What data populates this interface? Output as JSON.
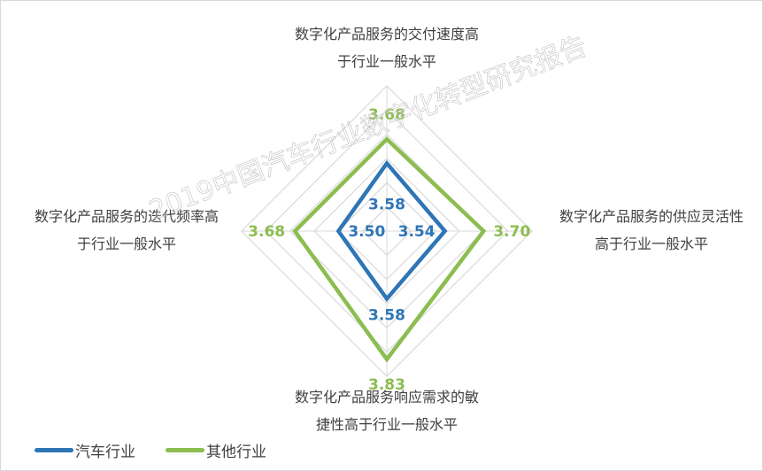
{
  "chart_data": {
    "type": "radar",
    "axes": [
      "数字化产品服务的交付速度高于行业一般水平",
      "数字化产品服务的供应灵活性高于行业一般水平",
      "数字化产品服务响应需求的敏捷性高于行业一般水平",
      "数字化产品服务的迭代频率高于行业一般水平"
    ],
    "axis_label_lines": [
      [
        "数字化产品服务的交付速度高",
        "于行业一般水平"
      ],
      [
        "数字化产品服务的供应灵活性",
        "高于行业一般水平"
      ],
      [
        "数字化产品服务响应需求的敏",
        "捷性高于行业一般水平"
      ],
      [
        "数字化产品服务的迭代频率高",
        "于行业一般水平"
      ]
    ],
    "range": [
      3.3,
      3.9
    ],
    "grid_step": 0.1,
    "grid": true,
    "legend_placement": "bottom-left",
    "series": [
      {
        "name": "汽车行业",
        "values": [
          3.58,
          3.54,
          3.58,
          3.5
        ],
        "labels": [
          "3.58",
          "3.54",
          "3.58",
          "3.50"
        ],
        "color": "#2e75b6"
      },
      {
        "name": "其他行业",
        "values": [
          3.68,
          3.7,
          3.83,
          3.68
        ],
        "labels": [
          "3.68",
          "3.70",
          "3.83",
          "3.68"
        ],
        "color": "#8cbd50"
      }
    ]
  },
  "watermark": "2019中国汽车行业数字化转型研究报告"
}
